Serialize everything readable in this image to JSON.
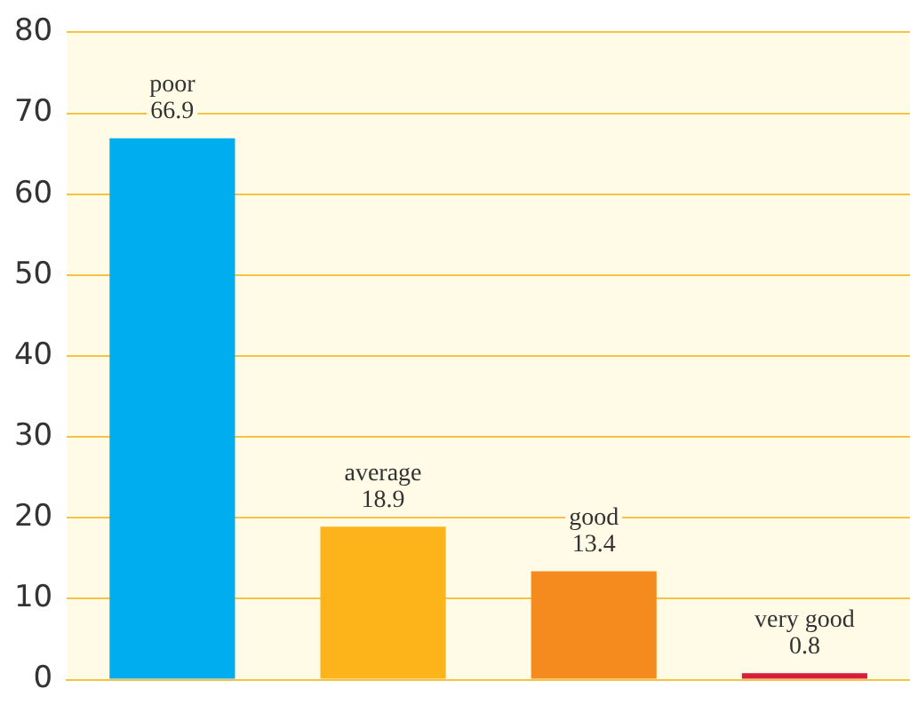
{
  "chart_data": {
    "type": "bar",
    "categories": [
      "poor",
      "average",
      "good",
      "very good"
    ],
    "values": [
      66.9,
      18.9,
      13.4,
      0.8
    ],
    "colors": [
      "#00aeef",
      "#fdb41b",
      "#f58a1f",
      "#d71e3c"
    ],
    "ylim": [
      0,
      80
    ],
    "yticks": [
      0,
      10,
      20,
      30,
      40,
      50,
      60,
      70,
      80
    ],
    "grid": "y",
    "data_labels": true,
    "legend": false
  }
}
